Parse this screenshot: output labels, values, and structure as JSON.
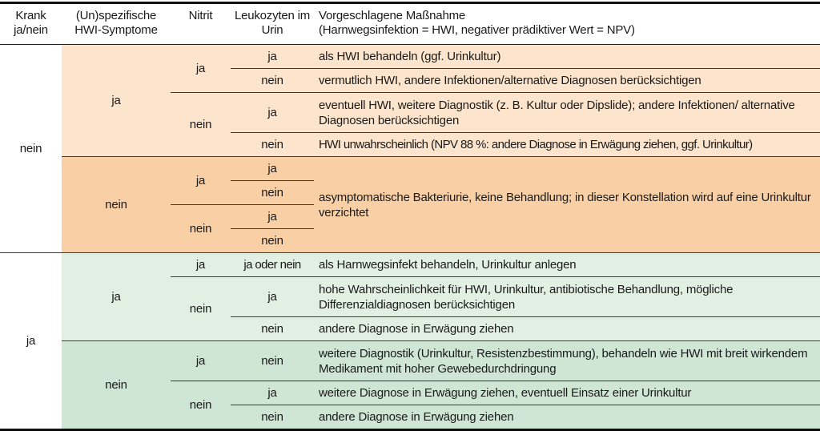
{
  "header": {
    "krank": "Krank ja/nein",
    "symptome": "(Un)spezifische HWI-Symptome",
    "nitrit": "Nitrit",
    "leukozyten": "Leukozyten im Urin",
    "massnahme_line1": "Vorgeschlagene Maßnahme",
    "massnahme_line2": "(Harnwegsinfektion = HWI, negativer prädiktiver Wert = NPV)"
  },
  "colors": {
    "orange_light": "#fde4cc",
    "orange_dark": "#f9cfa6",
    "green_light": "#e2f0e3",
    "green_dark": "#cfe6d5"
  },
  "groups": [
    {
      "krank": "nein",
      "subgroups": [
        {
          "symptome": "ja",
          "nitrit": [
            {
              "value": "ja",
              "leuko": [
                {
                  "value": "ja",
                  "action": "als HWI behandeln (ggf. Urinkultur)"
                },
                {
                  "value": "nein",
                  "action": "vermutlich HWI, andere Infektionen/alternative Diagnosen berücksichtigen"
                }
              ]
            },
            {
              "value": "nein",
              "leuko": [
                {
                  "value": "ja",
                  "action": "eventuell HWI, weitere Diagnostik (z. B. Kultur oder Dipslide); andere Infektionen/ alternative Diagnosen berücksichtigen"
                },
                {
                  "value": "nein",
                  "action": "HWI unwahrscheinlich (NPV 88 %: andere Diagnose in Erwägung ziehen, ggf. Urinkultur)"
                }
              ]
            }
          ]
        },
        {
          "symptome": "nein",
          "shared_action": "asymptomatische Bakteriurie, keine Behandlung; in dieser Konstellation wird auf eine Urinkultur verzichtet",
          "nitrit": [
            {
              "value": "ja",
              "leuko": [
                {
                  "value": "ja"
                },
                {
                  "value": "nein"
                }
              ]
            },
            {
              "value": "nein",
              "leuko": [
                {
                  "value": "ja"
                },
                {
                  "value": "nein"
                }
              ]
            }
          ]
        }
      ]
    },
    {
      "krank": "ja",
      "subgroups": [
        {
          "symptome": "ja",
          "nitrit": [
            {
              "value": "ja",
              "leuko": [
                {
                  "value": "ja oder nein",
                  "action": "als Harnwegsinfekt behandeln, Urinkultur anlegen"
                }
              ]
            },
            {
              "value": "nein",
              "leuko": [
                {
                  "value": "ja",
                  "action": "hohe Wahrscheinlichkeit für HWI, Urinkultur, antibiotische Behandlung, mögliche Differenzialdiagnosen berücksichtigen"
                },
                {
                  "value": "nein",
                  "action": "andere Diagnose in Erwägung ziehen"
                }
              ]
            }
          ]
        },
        {
          "symptome": "nein",
          "nitrit": [
            {
              "value": "ja",
              "leuko": [
                {
                  "value": "nein",
                  "action": "weitere Diagnostik (Urinkultur, Resistenzbestimmung), behandeln wie HWI mit breit wirkendem Medikament mit hoher Gewebedurchdringung"
                }
              ]
            },
            {
              "value": "nein",
              "leuko": [
                {
                  "value": "ja",
                  "action": "weitere Diagnose in Erwägung ziehen, eventuell Einsatz einer Urinkultur"
                },
                {
                  "value": "nein",
                  "action": "andere Diagnose in Erwägung ziehen"
                }
              ]
            }
          ]
        }
      ]
    }
  ]
}
